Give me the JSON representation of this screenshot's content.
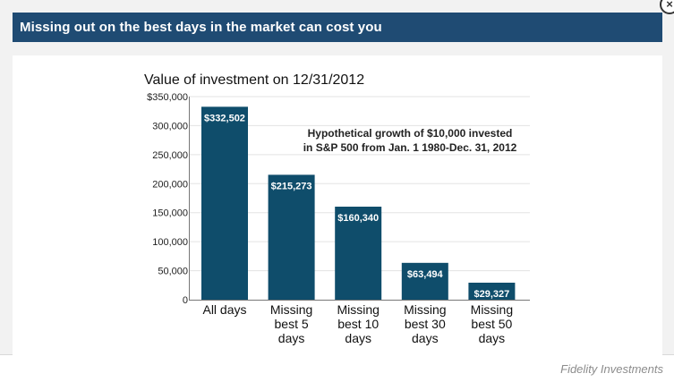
{
  "header": {
    "title": "Missing out on the best days in the market can cost you",
    "close_icon": "×"
  },
  "source_text": "Fidelity Investments",
  "colors": {
    "header_bg": "#1f4b73",
    "bar": "#0f4d6b",
    "grid": "#e3e3e3",
    "panel_bg": "#f2f2f2"
  },
  "chart_data": {
    "type": "bar",
    "title": "Value of investment on 12/31/2012",
    "annotation": [
      "Hypothetical growth of $10,000 invested",
      "in S&P 500 from Jan. 1 1980-Dec. 31, 2012"
    ],
    "categories": [
      [
        "All days"
      ],
      [
        "Missing",
        "best 5",
        "days"
      ],
      [
        "Missing",
        "best 10",
        "days"
      ],
      [
        "Missing",
        "best 30",
        "days"
      ],
      [
        "Missing",
        "best 50",
        "days"
      ]
    ],
    "values": [
      332502,
      215273,
      160340,
      63494,
      29327
    ],
    "data_labels": [
      "$332,502",
      "$215,273",
      "$160,340",
      "$63,494",
      "$29,327"
    ],
    "ylim": [
      0,
      350000
    ],
    "yticks": [
      0,
      50000,
      100000,
      150000,
      200000,
      250000,
      300000,
      350000
    ],
    "ytick_labels": [
      "0",
      "50,000",
      "100,000",
      "150,000",
      "200,000",
      "250,000",
      "300,000",
      "$350,000"
    ],
    "xlabel": "",
    "ylabel": "",
    "grid": true
  }
}
